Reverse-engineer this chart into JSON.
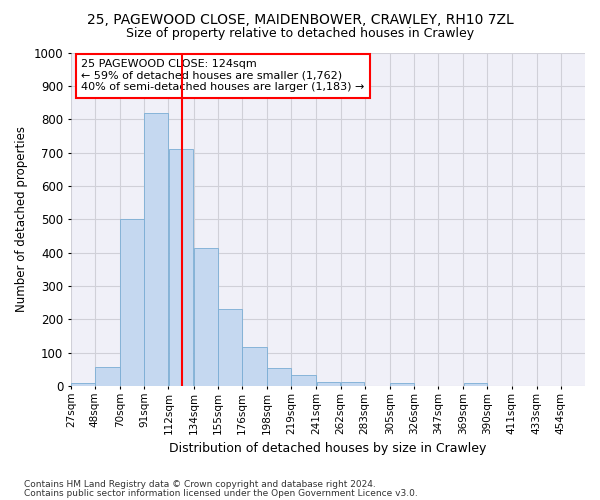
{
  "title1": "25, PAGEWOOD CLOSE, MAIDENBOWER, CRAWLEY, RH10 7ZL",
  "title2": "Size of property relative to detached houses in Crawley",
  "xlabel": "Distribution of detached houses by size in Crawley",
  "ylabel": "Number of detached properties",
  "footer1": "Contains HM Land Registry data © Crown copyright and database right 2024.",
  "footer2": "Contains public sector information licensed under the Open Government Licence v3.0.",
  "annotation_line1": "25 PAGEWOOD CLOSE: 124sqm",
  "annotation_line2": "← 59% of detached houses are smaller (1,762)",
  "annotation_line3": "40% of semi-detached houses are larger (1,183) →",
  "bar_left_edges": [
    27,
    48,
    70,
    91,
    112,
    134,
    155,
    176,
    198,
    219,
    241,
    262,
    283,
    305,
    326,
    347,
    369,
    390,
    411,
    433
  ],
  "bar_widths": [
    21,
    22,
    21,
    21,
    22,
    21,
    21,
    22,
    21,
    22,
    21,
    21,
    22,
    21,
    21,
    22,
    21,
    21,
    22,
    21
  ],
  "bar_heights": [
    8,
    58,
    500,
    820,
    710,
    415,
    230,
    118,
    55,
    32,
    12,
    12,
    0,
    10,
    0,
    0,
    8,
    0,
    0,
    0
  ],
  "bar_color": "#c5d8f0",
  "bar_edgecolor": "#7aadd4",
  "grid_color": "#d0d0d8",
  "vline_x": 124,
  "vline_color": "red",
  "ylim": [
    0,
    1000
  ],
  "yticks": [
    0,
    100,
    200,
    300,
    400,
    500,
    600,
    700,
    800,
    900,
    1000
  ],
  "x_tick_labels": [
    "27sqm",
    "48sqm",
    "70sqm",
    "91sqm",
    "112sqm",
    "134sqm",
    "155sqm",
    "176sqm",
    "198sqm",
    "219sqm",
    "241sqm",
    "262sqm",
    "283sqm",
    "305sqm",
    "326sqm",
    "347sqm",
    "369sqm",
    "390sqm",
    "411sqm",
    "433sqm",
    "454sqm"
  ],
  "annotation_box_color": "red",
  "bg_color": "#ffffff",
  "plot_bg_color": "#f0f0f8"
}
